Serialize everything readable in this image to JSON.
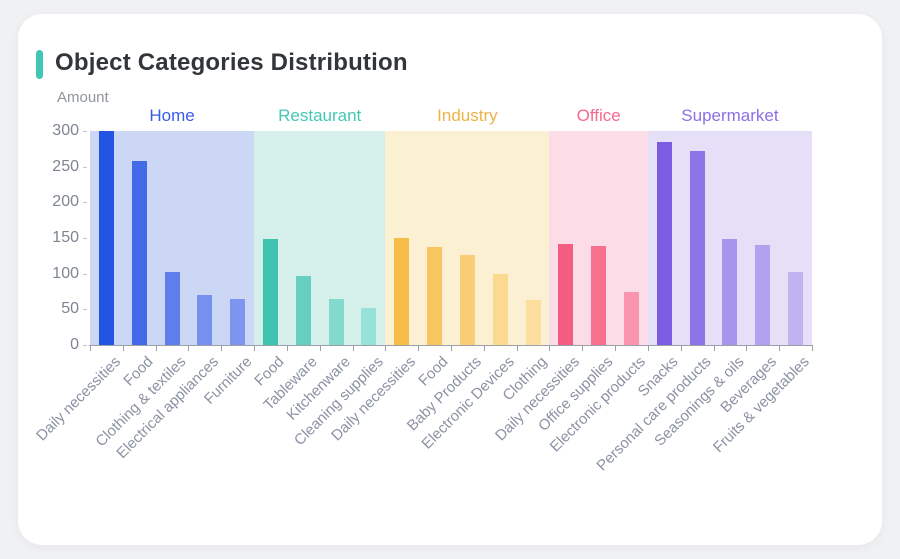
{
  "page": {
    "background_color": "#f0f1f3",
    "card_color": "#ffffff"
  },
  "card": {
    "title": "Object Categories Distribution",
    "accent_color": "#40c6b5"
  },
  "chart_data": {
    "type": "bar",
    "title": "Object Categories Distribution",
    "xlabel": "",
    "ylabel": "Amount",
    "ylim": [
      0,
      300
    ],
    "yticks": [
      0,
      50,
      100,
      150,
      200,
      250,
      300
    ],
    "grid": false,
    "legend_position": "group-labels-above-bands",
    "axis": {
      "line_color": "#9aa0a6",
      "xtick_label_color": "#8b92a3",
      "ytick_label_color": "#7e8590",
      "xtick_label_rotation_deg": 45
    },
    "groups": [
      {
        "name": "Home",
        "label_color": "#3a5be9",
        "band_color": "#ccd7f5",
        "bars": [
          {
            "label": "Daily necessities",
            "value": 300,
            "color": "#2255e3"
          },
          {
            "label": "Food",
            "value": 258,
            "color": "#4169e8"
          },
          {
            "label": "Clothing & textiles",
            "value": 103,
            "color": "#5f7eeb"
          },
          {
            "label": "Electrical appliances",
            "value": 70,
            "color": "#7590ee"
          },
          {
            "label": "Furniture",
            "value": 65,
            "color": "#7d95ee"
          }
        ]
      },
      {
        "name": "Restaurant",
        "label_color": "#45c8b3",
        "band_color": "#d5f0ea",
        "bars": [
          {
            "label": "Food",
            "value": 148,
            "color": "#3fc2ae"
          },
          {
            "label": "Tableware",
            "value": 97,
            "color": "#66cfc0"
          },
          {
            "label": "Kitchenware",
            "value": 65,
            "color": "#82dacd"
          },
          {
            "label": "Cleaning supplies",
            "value": 52,
            "color": "#97e2d8"
          }
        ]
      },
      {
        "name": "Industry",
        "label_color": "#ecb445",
        "band_color": "#fcf0d3",
        "bars": [
          {
            "label": "Daily necessities",
            "value": 150,
            "color": "#f7bc47"
          },
          {
            "label": "Food",
            "value": 138,
            "color": "#f8c660"
          },
          {
            "label": "Baby Products",
            "value": 126,
            "color": "#f9cd75"
          },
          {
            "label": "Electronic Devices",
            "value": 100,
            "color": "#fbd98f"
          },
          {
            "label": "Clothing",
            "value": 63,
            "color": "#fcdf9f"
          }
        ]
      },
      {
        "name": "Office",
        "label_color": "#f8688c",
        "band_color": "#fcdde7",
        "bars": [
          {
            "label": "Daily necessities",
            "value": 142,
            "color": "#f55c82"
          },
          {
            "label": "Office supplies",
            "value": 139,
            "color": "#f7718f"
          },
          {
            "label": "Electronic products",
            "value": 75,
            "color": "#f995af"
          }
        ]
      },
      {
        "name": "Supermarket",
        "label_color": "#8a70e5",
        "band_color": "#e5dff7",
        "bars": [
          {
            "label": "Snacks",
            "value": 285,
            "color": "#7c5ce3"
          },
          {
            "label": "Personal care products",
            "value": 272,
            "color": "#8e74e6"
          },
          {
            "label": "Seasonings & oils",
            "value": 148,
            "color": "#a794ec"
          },
          {
            "label": "Beverages",
            "value": 140,
            "color": "#b2a1ee"
          },
          {
            "label": "Fruits & vegetables",
            "value": 102,
            "color": "#c0b3f1"
          }
        ]
      }
    ]
  }
}
